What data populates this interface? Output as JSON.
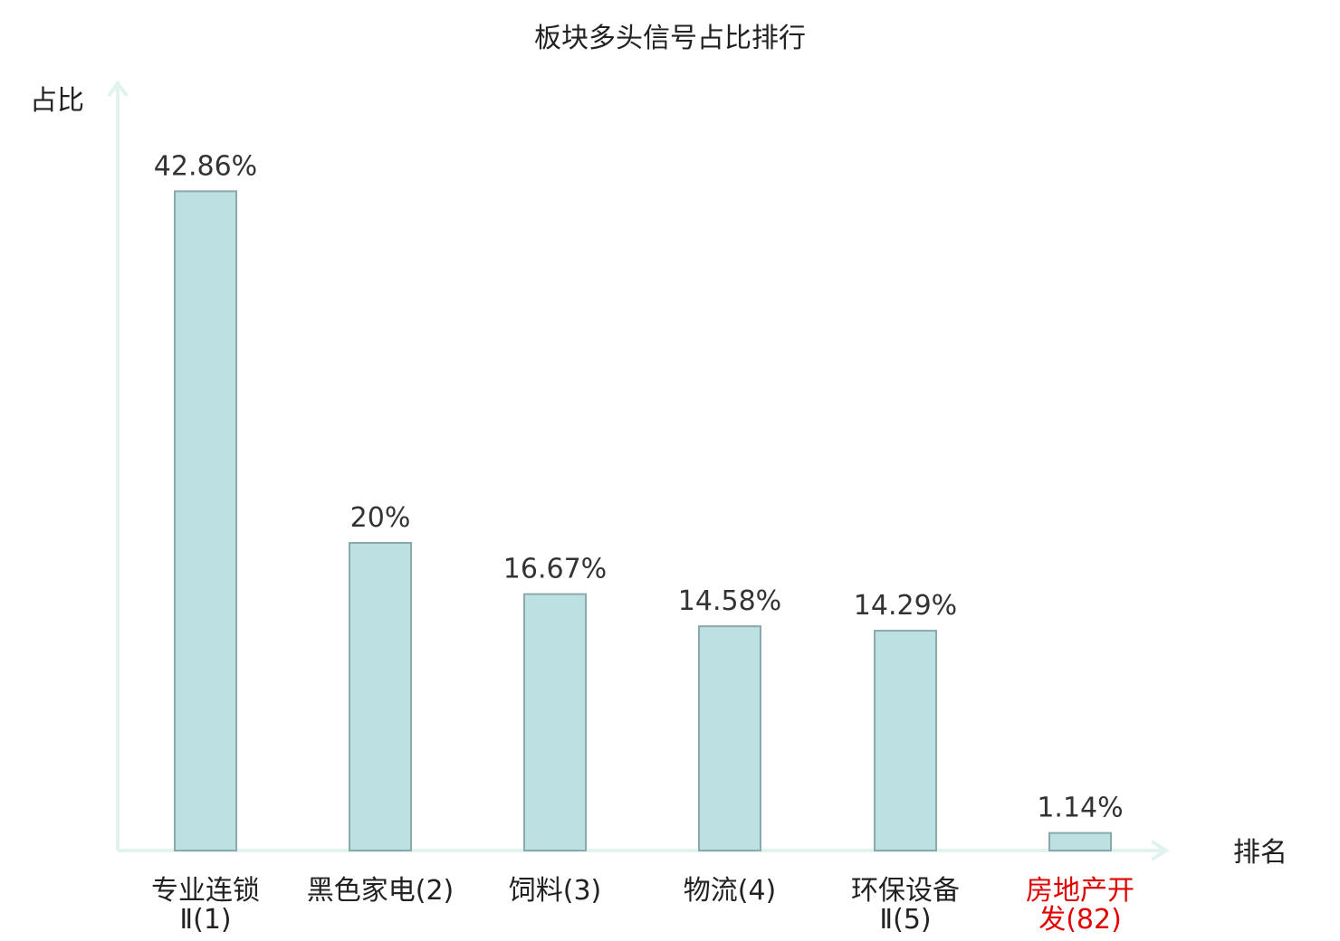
{
  "chart_data": {
    "type": "bar",
    "title": "板块多头信号占比排行",
    "ylabel": "占比",
    "xlabel": "排名",
    "ylim": [
      0,
      50
    ],
    "grid": false,
    "categories": [
      {
        "lines": [
          "专业连锁",
          "Ⅱ(1)"
        ],
        "highlight": false
      },
      {
        "lines": [
          "黑色家电(2)"
        ],
        "highlight": false
      },
      {
        "lines": [
          "饲料(3)"
        ],
        "highlight": false
      },
      {
        "lines": [
          "物流(4)"
        ],
        "highlight": false
      },
      {
        "lines": [
          "环保设备",
          "Ⅱ(5)"
        ],
        "highlight": false
      },
      {
        "lines": [
          "房地产开",
          "发(82)"
        ],
        "highlight": true
      }
    ],
    "values": [
      42.86,
      20,
      16.67,
      14.58,
      14.29,
      1.14
    ],
    "value_labels": [
      "42.86%",
      "20%",
      "16.67%",
      "14.58%",
      "14.29%",
      "1.14%"
    ],
    "colors": {
      "bar_fill": "#bde0e3",
      "bar_stroke": "#8aa9ab",
      "axis": "#e0f3ef",
      "text": "#222222",
      "value_text": "#333333",
      "highlight_text": "#e00000"
    }
  }
}
